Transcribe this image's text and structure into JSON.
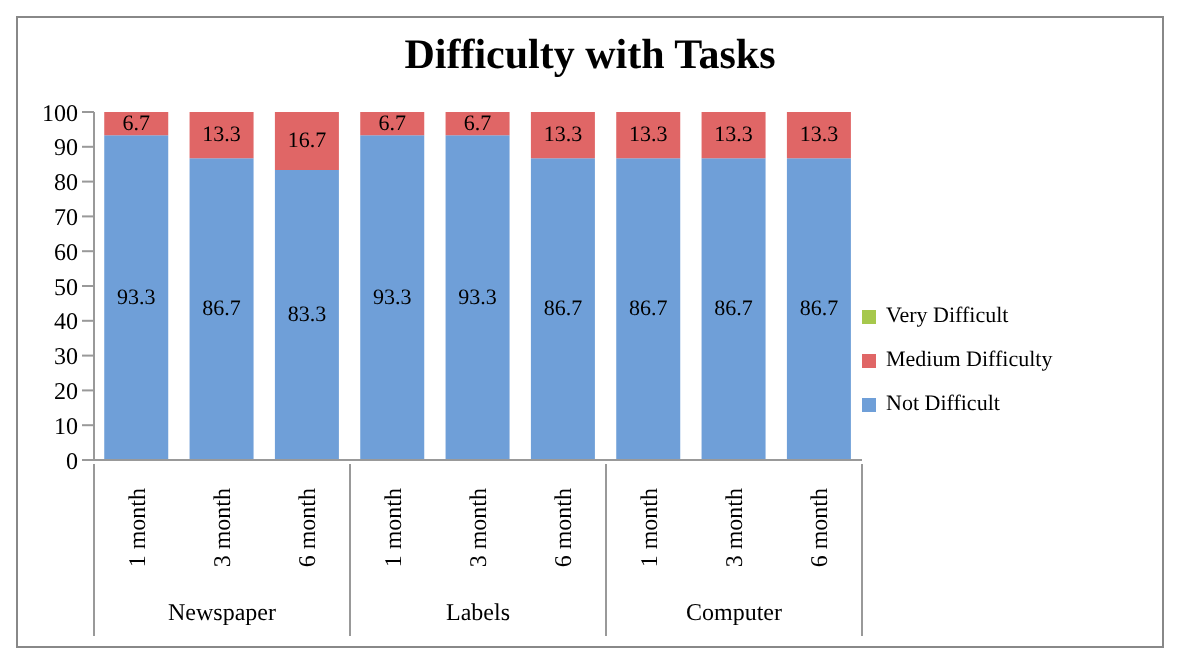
{
  "chart_data": {
    "type": "bar",
    "title": "Difficulty with Tasks",
    "stacked": true,
    "categories": [
      "1 month",
      "3 month",
      "6 month",
      "1 month",
      "3 month",
      "6 month",
      "1 month",
      "3 month",
      "6 month"
    ],
    "annotations": [
      "Newspaper",
      "Labels",
      "Computer"
    ],
    "series": [
      {
        "name": "Not Difficult",
        "color": "#6f9fd8",
        "values": [
          93.3,
          86.7,
          83.3,
          93.3,
          93.3,
          86.7,
          86.7,
          86.7,
          86.7
        ],
        "value_labels": [
          "93.3",
          "86.7",
          "83.3",
          "93.3",
          "93.3",
          "86.7",
          "86.7",
          "86.7",
          "86.7"
        ]
      },
      {
        "name": "Medium Difficulty",
        "color": "#e06666",
        "values": [
          6.7,
          13.3,
          16.7,
          6.7,
          6.7,
          13.3,
          13.3,
          13.3,
          13.3
        ],
        "value_labels": [
          "6.7",
          "13.3",
          "16.7",
          "6.7",
          "6.7",
          "13.3",
          "13.3",
          "13.3",
          "13.3"
        ]
      },
      {
        "name": "Very Difficult",
        "color": "#a6c84c",
        "values": [
          0,
          0,
          0,
          0,
          0,
          0,
          0,
          0,
          0
        ]
      }
    ],
    "ylim": [
      0,
      100
    ],
    "yticks": [
      0,
      10,
      20,
      30,
      40,
      50,
      60,
      70,
      80,
      90,
      100
    ],
    "grid": false,
    "legend": "right"
  }
}
